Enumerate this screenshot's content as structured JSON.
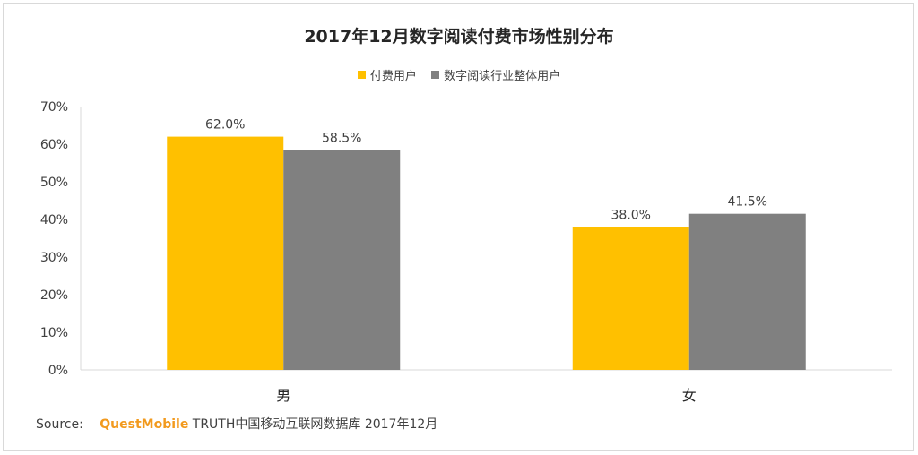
{
  "title": "2017年12月数字阅读付费市场性别分布",
  "legend": [
    {
      "label": "付费用户",
      "color": "#FFC000"
    },
    {
      "label": "数字阅读行业整体用户",
      "color": "#808080"
    }
  ],
  "source": {
    "prefix": "Source:",
    "brand": "QuestMobile",
    "text": "TRUTH中国移动互联网数据库 2017年12月"
  },
  "chart_data": {
    "type": "bar",
    "title": "2017年12月数字阅读付费市场性别分布",
    "categories": [
      "男",
      "女"
    ],
    "series": [
      {
        "name": "付费用户",
        "values": [
          62.0,
          38.0
        ],
        "labels": [
          "62.0%",
          "38.0%"
        ],
        "color": "#FFC000"
      },
      {
        "name": "数字阅读行业整体用户",
        "values": [
          58.5,
          41.5
        ],
        "labels": [
          "58.5%",
          "41.5%"
        ],
        "color": "#808080"
      }
    ],
    "ylim": [
      0,
      70
    ],
    "yticks": [
      "0%",
      "10%",
      "20%",
      "30%",
      "40%",
      "50%",
      "60%",
      "70%"
    ],
    "grid": false,
    "legend_position": "top"
  }
}
